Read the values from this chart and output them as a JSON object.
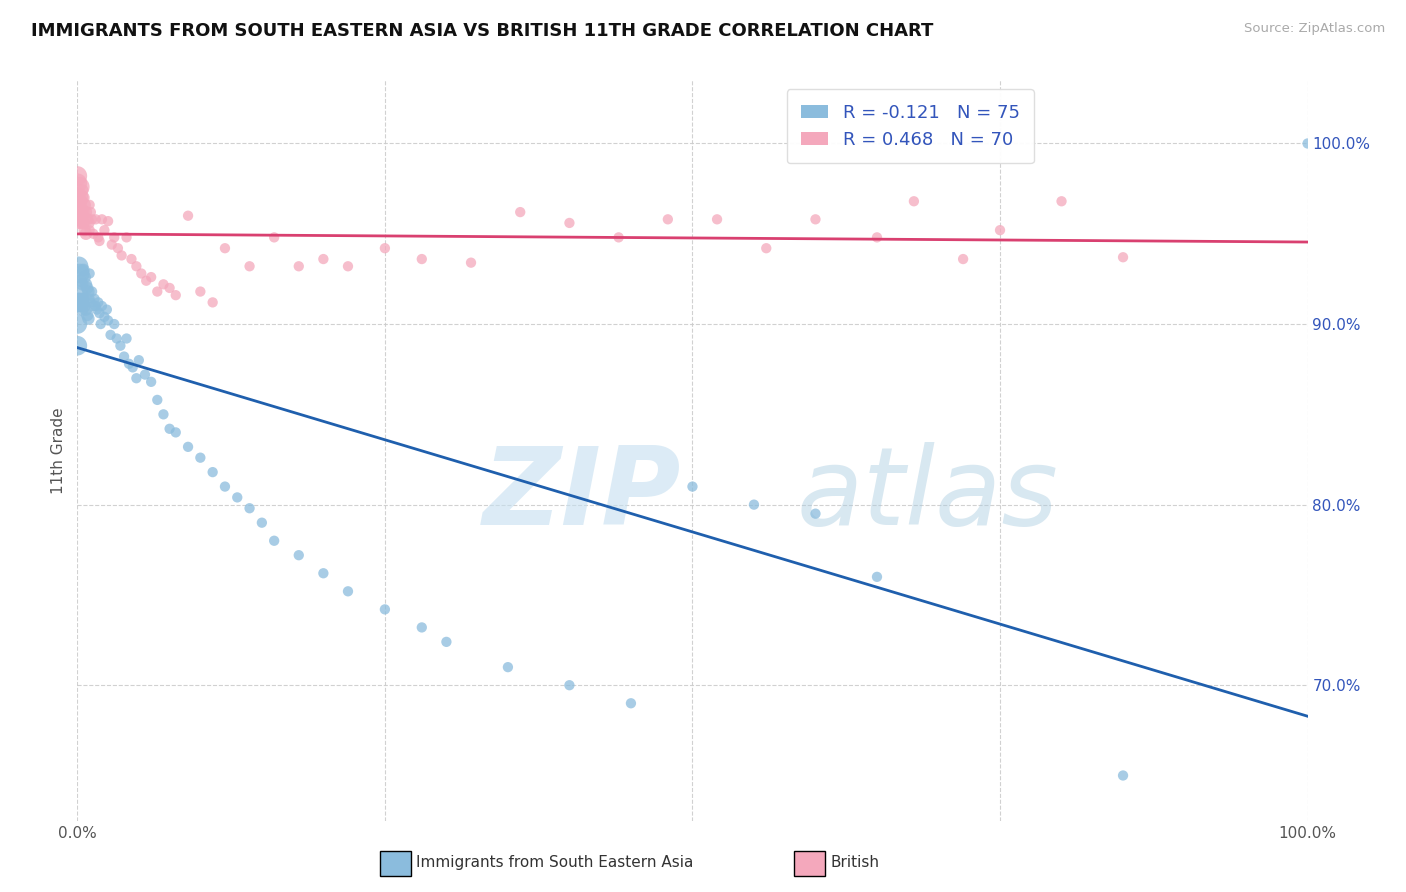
{
  "title": "IMMIGRANTS FROM SOUTH EASTERN ASIA VS BRITISH 11TH GRADE CORRELATION CHART",
  "source": "Source: ZipAtlas.com",
  "ylabel": "11th Grade",
  "xlim": [
    0,
    1.0
  ],
  "ylim": [
    0.625,
    1.035
  ],
  "yticks": [
    0.7,
    0.8,
    0.9,
    1.0
  ],
  "xtick_labels": [
    "0.0%",
    "",
    "",
    "",
    "100.0%"
  ],
  "ytick_labels_right": [
    "70.0%",
    "80.0%",
    "90.0%",
    "100.0%"
  ],
  "blue_R": -0.121,
  "blue_N": 75,
  "pink_R": 0.468,
  "pink_N": 70,
  "blue_color": "#8BBCDD",
  "pink_color": "#F4A8BC",
  "blue_line_color": "#1F5FAD",
  "pink_line_color": "#D94070",
  "legend_label_blue": "Immigrants from South Eastern Asia",
  "legend_label_pink": "British",
  "blue_scatter_x": [
    0.0,
    0.0,
    0.0,
    0.001,
    0.001,
    0.002,
    0.002,
    0.003,
    0.003,
    0.004,
    0.004,
    0.005,
    0.005,
    0.006,
    0.006,
    0.007,
    0.007,
    0.008,
    0.008,
    0.009,
    0.009,
    0.01,
    0.01,
    0.011,
    0.012,
    0.013,
    0.014,
    0.015,
    0.016,
    0.017,
    0.018,
    0.019,
    0.02,
    0.022,
    0.024,
    0.025,
    0.027,
    0.03,
    0.032,
    0.035,
    0.038,
    0.04,
    0.042,
    0.045,
    0.048,
    0.05,
    0.055,
    0.06,
    0.065,
    0.07,
    0.075,
    0.08,
    0.09,
    0.1,
    0.11,
    0.12,
    0.13,
    0.14,
    0.15,
    0.16,
    0.18,
    0.2,
    0.22,
    0.25,
    0.28,
    0.3,
    0.35,
    0.4,
    0.45,
    0.5,
    0.55,
    0.6,
    0.65,
    0.85,
    1.0
  ],
  "blue_scatter_y": [
    0.912,
    0.9,
    0.888,
    0.932,
    0.916,
    0.928,
    0.912,
    0.924,
    0.91,
    0.922,
    0.908,
    0.93,
    0.914,
    0.926,
    0.91,
    0.922,
    0.908,
    0.92,
    0.905,
    0.918,
    0.903,
    0.928,
    0.914,
    0.912,
    0.918,
    0.91,
    0.914,
    0.91,
    0.908,
    0.912,
    0.906,
    0.9,
    0.91,
    0.904,
    0.908,
    0.902,
    0.894,
    0.9,
    0.892,
    0.888,
    0.882,
    0.892,
    0.878,
    0.876,
    0.87,
    0.88,
    0.872,
    0.868,
    0.858,
    0.85,
    0.842,
    0.84,
    0.832,
    0.826,
    0.818,
    0.81,
    0.804,
    0.798,
    0.79,
    0.78,
    0.772,
    0.762,
    0.752,
    0.742,
    0.732,
    0.724,
    0.71,
    0.7,
    0.69,
    0.81,
    0.8,
    0.795,
    0.76,
    0.65,
    1.0
  ],
  "pink_scatter_x": [
    0.0,
    0.0,
    0.0,
    0.0,
    0.001,
    0.001,
    0.002,
    0.002,
    0.003,
    0.003,
    0.004,
    0.004,
    0.005,
    0.005,
    0.006,
    0.006,
    0.007,
    0.007,
    0.008,
    0.009,
    0.01,
    0.01,
    0.011,
    0.012,
    0.013,
    0.015,
    0.017,
    0.018,
    0.02,
    0.022,
    0.025,
    0.028,
    0.03,
    0.033,
    0.036,
    0.04,
    0.044,
    0.048,
    0.052,
    0.056,
    0.06,
    0.065,
    0.07,
    0.075,
    0.08,
    0.09,
    0.1,
    0.11,
    0.12,
    0.14,
    0.16,
    0.18,
    0.2,
    0.22,
    0.25,
    0.28,
    0.32,
    0.36,
    0.4,
    0.44,
    0.48,
    0.52,
    0.56,
    0.6,
    0.65,
    0.68,
    0.72,
    0.75,
    0.8,
    0.85
  ],
  "pink_scatter_y": [
    0.978,
    0.968,
    0.958,
    0.982,
    0.97,
    0.96,
    0.976,
    0.962,
    0.968,
    0.956,
    0.974,
    0.96,
    0.97,
    0.956,
    0.966,
    0.952,
    0.962,
    0.95,
    0.958,
    0.956,
    0.966,
    0.952,
    0.962,
    0.958,
    0.95,
    0.958,
    0.948,
    0.946,
    0.958,
    0.952,
    0.957,
    0.944,
    0.948,
    0.942,
    0.938,
    0.948,
    0.936,
    0.932,
    0.928,
    0.924,
    0.926,
    0.918,
    0.922,
    0.92,
    0.916,
    0.96,
    0.918,
    0.912,
    0.942,
    0.932,
    0.948,
    0.932,
    0.936,
    0.932,
    0.942,
    0.936,
    0.934,
    0.962,
    0.956,
    0.948,
    0.958,
    0.958,
    0.942,
    0.958,
    0.948,
    0.968,
    0.936,
    0.952,
    0.968,
    0.937
  ]
}
